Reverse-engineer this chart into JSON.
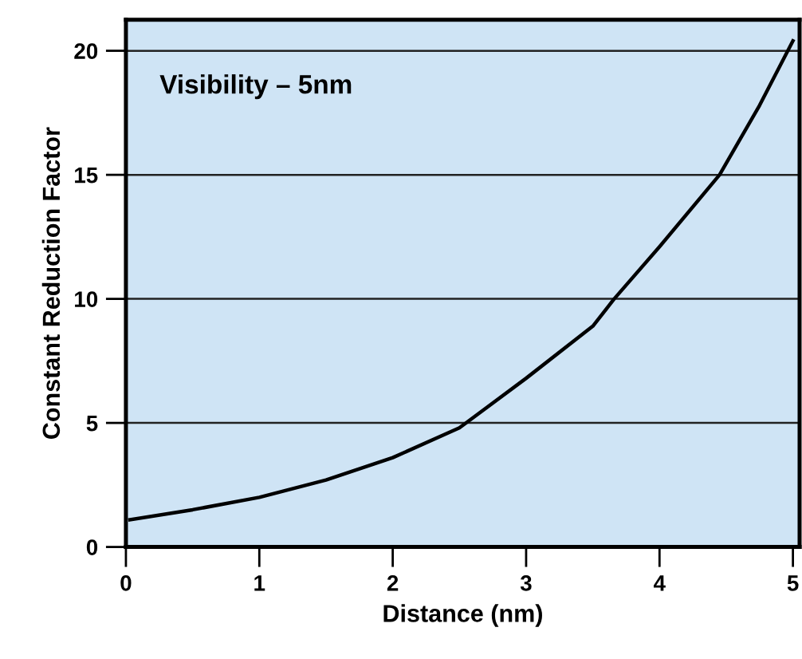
{
  "chart_data": {
    "type": "line",
    "xlabel": "Distance (nm)",
    "ylabel": "Constant Reduction Factor",
    "annotations": [
      "Visibility – 5nm"
    ],
    "series": [
      {
        "color": "#000000",
        "x": [
          0.03,
          0.5,
          1,
          1.5,
          2,
          2.5,
          3,
          3.5,
          3.66,
          4,
          4.45,
          4.75,
          5.0
        ],
        "values": [
          1.1,
          1.5,
          2.0,
          2.7,
          3.6,
          4.8,
          6.8,
          8.9,
          10,
          12.1,
          15,
          17.8,
          20.4
        ]
      }
    ],
    "xlim": [
      0,
      5.05
    ],
    "ylim": [
      0,
      21.25
    ],
    "xticks": [
      0,
      1,
      2,
      3,
      4,
      5
    ],
    "yticks": [
      0,
      5,
      10,
      15,
      20
    ],
    "grid": "y",
    "marker": "none",
    "line_style": "solid",
    "legend": false
  }
}
